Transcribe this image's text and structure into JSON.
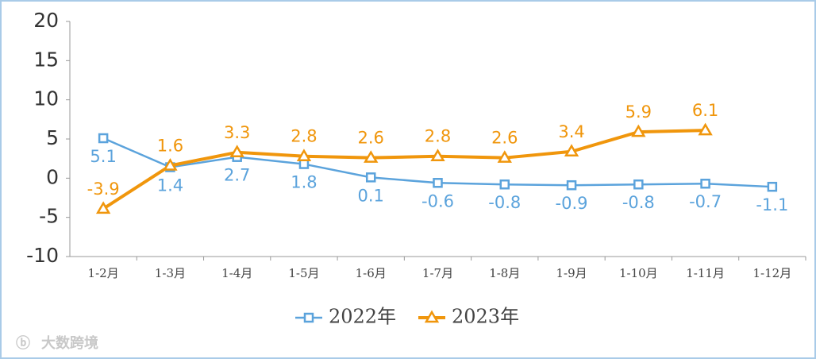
{
  "chart_data": {
    "type": "line",
    "categories": [
      "1-2月",
      "1-3月",
      "1-4月",
      "1-5月",
      "1-6月",
      "1-7月",
      "1-8月",
      "1-9月",
      "1-10月",
      "1-11月",
      "1-12月"
    ],
    "series": [
      {
        "name": "2022年",
        "color": "#5ba3dc",
        "marker": "square",
        "label_position": "below",
        "values": [
          5.1,
          1.4,
          2.7,
          1.8,
          0.1,
          -0.6,
          -0.8,
          -0.9,
          -0.8,
          -0.7,
          -1.1
        ]
      },
      {
        "name": "2023年",
        "color": "#f0960c",
        "marker": "triangle",
        "label_position": "above",
        "values": [
          -3.9,
          1.6,
          3.3,
          2.8,
          2.6,
          2.8,
          2.6,
          3.4,
          5.9,
          6.1,
          null
        ]
      }
    ],
    "ylim": [
      -10,
      20
    ],
    "yticks": [
      -10,
      -5,
      0,
      5,
      10,
      15,
      20
    ],
    "legend": "bottom",
    "watermark": "大数跨境"
  }
}
